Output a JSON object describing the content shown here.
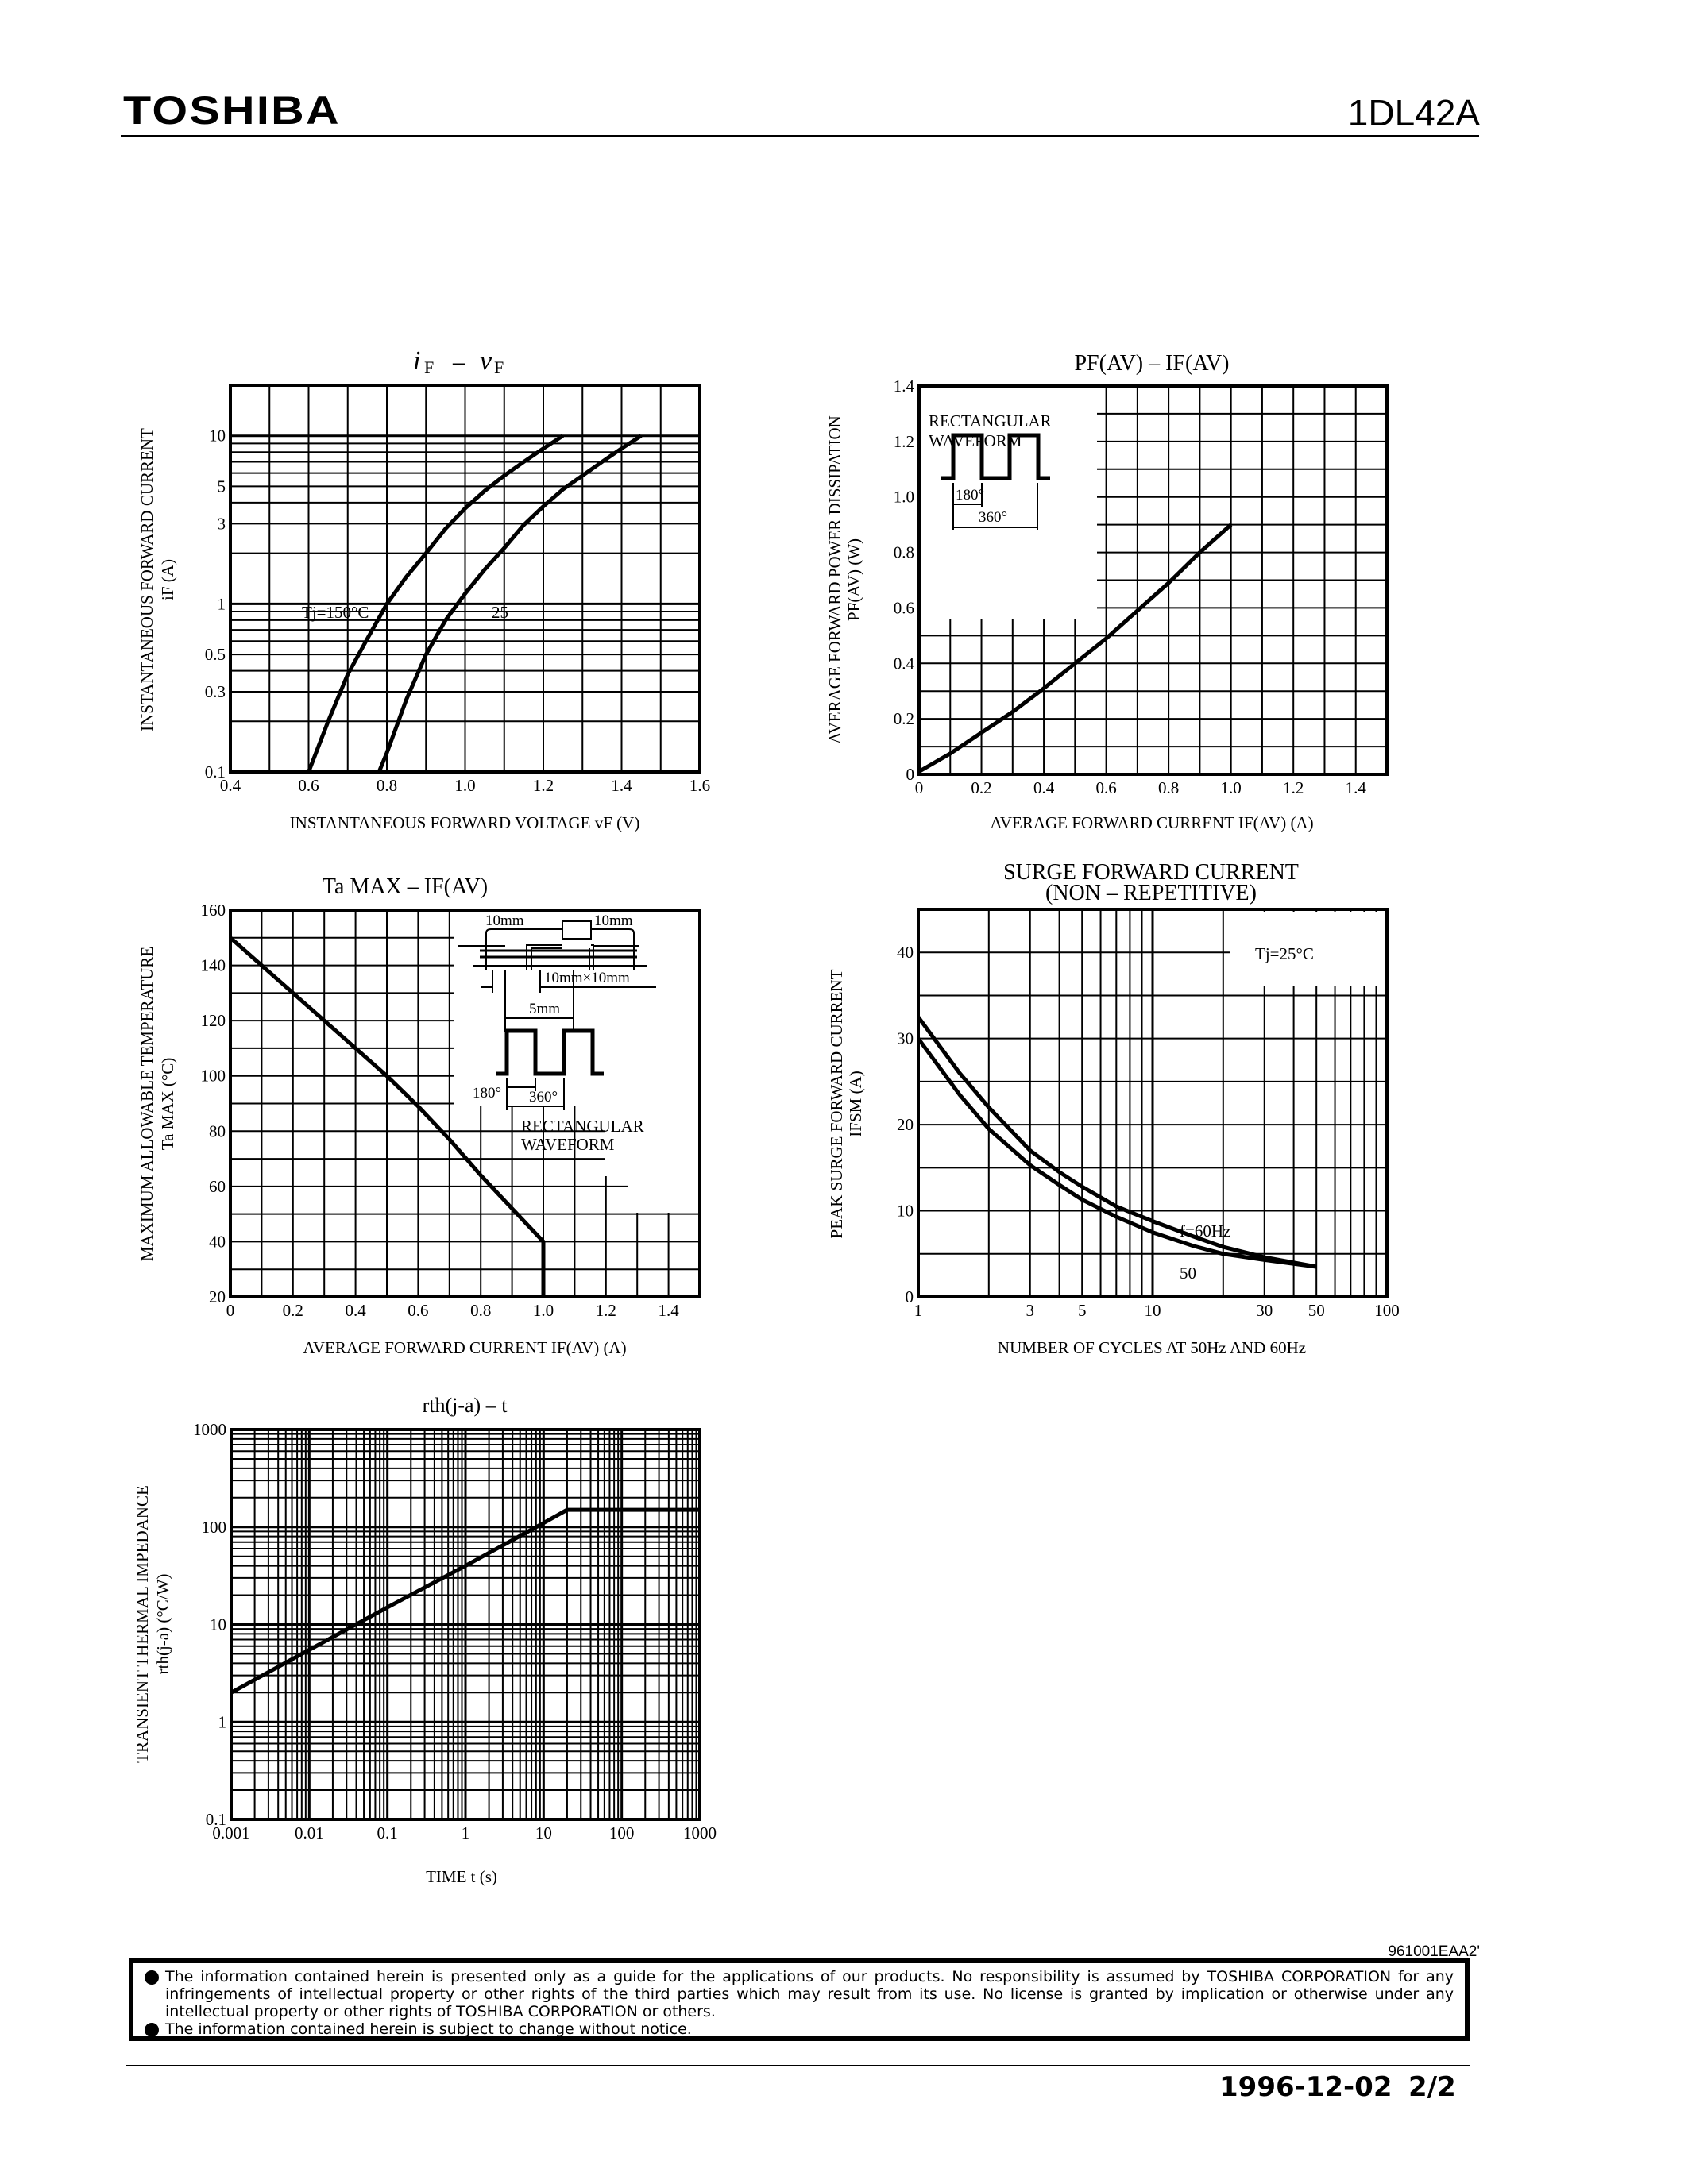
{
  "header": {
    "brand": "TOSHIBA",
    "part_number": "1DL42A"
  },
  "footer": {
    "doc_code": "961001EAA2'",
    "disclaimer": [
      "The information contained herein is presented only as a guide for the applications of our products. No responsibility is assumed by TOSHIBA CORPORATION for any infringements of intellectual property or other rights of the third parties which may result from its use. No license is granted by implication or otherwise under any intellectual property or other rights of TOSHIBA CORPORATION or others.",
      "The information contained herein is subject to change without notice."
    ],
    "date": "1996-12-02",
    "page": "2/2"
  },
  "chart_data": [
    {
      "id": "if-vf",
      "type": "line",
      "title": "iF – vF",
      "xlabel": "INSTANTANEOUS FORWARD VOLTAGE vF (V)",
      "ylabel": "INSTANTANEOUS FORWARD CURRENT iF (A)",
      "xscale": "linear",
      "yscale": "log",
      "xlim": [
        0.4,
        1.6
      ],
      "ylim": [
        0.1,
        20
      ],
      "xticks": [
        "0.4",
        "0.6",
        "0.8",
        "1.0",
        "1.2",
        "1.4",
        "1.6"
      ],
      "yticks": [
        "0.1",
        "0.3",
        "0.5",
        "1",
        "3",
        "5",
        "10"
      ],
      "grid": true,
      "series": [
        {
          "name": "Tj=150°C",
          "label": "Tj=150°C",
          "x": [
            0.6,
            0.65,
            0.7,
            0.75,
            0.8,
            0.85,
            0.9,
            0.95,
            1.0,
            1.05,
            1.1,
            1.15,
            1.2,
            1.25
          ],
          "y": [
            0.1,
            0.2,
            0.38,
            0.62,
            1.0,
            1.45,
            2.0,
            2.8,
            3.7,
            4.7,
            5.8,
            7.0,
            8.4,
            10.0
          ]
        },
        {
          "name": "Tj=25°C",
          "label": "25",
          "x": [
            0.78,
            0.8,
            0.85,
            0.9,
            0.95,
            1.0,
            1.05,
            1.1,
            1.15,
            1.2,
            1.25,
            1.3,
            1.35,
            1.4,
            1.45
          ],
          "y": [
            0.1,
            0.13,
            0.27,
            0.5,
            0.8,
            1.15,
            1.6,
            2.15,
            2.95,
            3.8,
            4.8,
            5.8,
            7.0,
            8.4,
            10.0
          ]
        }
      ],
      "annotations": [
        "Tj=150°C",
        "25"
      ]
    },
    {
      "id": "pf-if",
      "type": "line",
      "title": "PF(AV) – IF(AV)",
      "xlabel": "AVERAGE FORWARD CURRENT IF(AV) (A)",
      "ylabel": "AVERAGE FORWARD POWER DISSIPATION PF(AV) (W)",
      "xscale": "linear",
      "yscale": "linear",
      "xlim": [
        0,
        1.5
      ],
      "ylim": [
        0,
        1.4
      ],
      "xticks": [
        "0",
        "0.2",
        "0.4",
        "0.6",
        "0.8",
        "1.0",
        "1.2",
        "1.4"
      ],
      "yticks": [
        "0",
        "0.2",
        "0.4",
        "0.6",
        "0.8",
        "1.0",
        "1.2",
        "1.4"
      ],
      "grid": true,
      "series": [
        {
          "name": "Rectangular 180°",
          "x": [
            0,
            0.1,
            0.2,
            0.3,
            0.4,
            0.5,
            0.6,
            0.7,
            0.8,
            0.9,
            1.0
          ],
          "y": [
            0.01,
            0.075,
            0.15,
            0.225,
            0.31,
            0.4,
            0.49,
            0.59,
            0.69,
            0.8,
            0.9
          ]
        }
      ],
      "annotations": [
        "RECTANGULAR",
        "WAVEFORM",
        "180°",
        "360°"
      ]
    },
    {
      "id": "ta-if",
      "type": "line",
      "title": "Ta MAX – IF(AV)",
      "xlabel": "AVERAGE FORWARD CURRENT IF(AV) (A)",
      "ylabel": "MAXIMUM ALLOWABLE TEMPERATURE Ta MAX (°C)",
      "xscale": "linear",
      "yscale": "linear",
      "xlim": [
        0,
        1.5
      ],
      "ylim": [
        20,
        160
      ],
      "xticks": [
        "0",
        "0.2",
        "0.4",
        "0.6",
        "0.8",
        "1.0",
        "1.2",
        "1.4"
      ],
      "yticks": [
        "20",
        "40",
        "60",
        "80",
        "100",
        "120",
        "140",
        "160"
      ],
      "grid": true,
      "series": [
        {
          "name": "Ta MAX",
          "x": [
            0,
            0.1,
            0.2,
            0.3,
            0.4,
            0.5,
            0.6,
            0.7,
            0.8,
            0.9,
            1.0,
            1.0
          ],
          "y": [
            150,
            140,
            130,
            120,
            110,
            100,
            89,
            77,
            64,
            52,
            40,
            20
          ]
        }
      ],
      "annotations": [
        "10mm",
        "10mm",
        "10mm×10mm",
        "5mm",
        "180°",
        "360°",
        "RECTANGULAR",
        "WAVEFORM"
      ]
    },
    {
      "id": "ifsm-cycles",
      "type": "line",
      "title": "SURGE FORWARD CURRENT (NON – REPETITIVE)",
      "xlabel": "NUMBER OF CYCLES AT 50Hz AND 60Hz",
      "ylabel": "PEAK SURGE FORWARD CURRENT IFSM (A)",
      "xscale": "log",
      "yscale": "linear",
      "xlim": [
        1,
        100
      ],
      "ylim": [
        0,
        45
      ],
      "xticks": [
        "1",
        "3",
        "5",
        "10",
        "30",
        "50",
        "100"
      ],
      "yticks": [
        "0",
        "10",
        "20",
        "30",
        "40"
      ],
      "grid": true,
      "series": [
        {
          "name": "f=60Hz",
          "x": [
            1,
            1.5,
            2,
            3,
            4,
            5,
            7,
            10,
            15,
            20,
            30,
            50
          ],
          "y": [
            32.5,
            26,
            22,
            17,
            14.5,
            12.8,
            10.5,
            8.8,
            7,
            5.8,
            4.6,
            3.5
          ]
        },
        {
          "name": "f=50Hz",
          "x": [
            1,
            1.5,
            2,
            3,
            4,
            5,
            7,
            10,
            15,
            20,
            30,
            50
          ],
          "y": [
            30,
            23.5,
            19.5,
            15.3,
            13,
            11.3,
            9.3,
            7.5,
            5.9,
            5.0,
            4.3,
            3.5
          ]
        }
      ],
      "annotations": [
        "Tj=25°C",
        "f=60Hz",
        "50"
      ]
    },
    {
      "id": "rth-t",
      "type": "line",
      "title": "rth(j-a) – t",
      "xlabel": "TIME t (s)",
      "ylabel": "TRANSIENT THERMAL IMPEDANCE rth(j-a) (°C/W)",
      "xscale": "log",
      "yscale": "log",
      "xlim": [
        0.001,
        1000
      ],
      "ylim": [
        0.1,
        1000
      ],
      "xticks": [
        "0.001",
        "0.01",
        "0.1",
        "1",
        "10",
        "100",
        "1000"
      ],
      "yticks": [
        "0.1",
        "1",
        "10",
        "100",
        "1000"
      ],
      "grid": true,
      "series": [
        {
          "name": "rth(j-a)",
          "x": [
            0.001,
            0.01,
            0.1,
            1,
            10,
            20,
            1000
          ],
          "y": [
            2.0,
            5.5,
            15,
            40,
            110,
            150,
            150
          ]
        }
      ]
    }
  ],
  "charts": {
    "c1": {
      "title_main": "i",
      "title_sub": "F",
      "title_dash": "–",
      "title_main2": "v",
      "title_sub2": "F",
      "ylabel1": "INSTANTANEOUS FORWARD CURRENT",
      "ylabel2": "iF (A)",
      "xlabel": "INSTANTANEOUS FORWARD VOLTAGE vF (V)",
      "ann1": "Tj=150°C",
      "ann2": "25"
    },
    "c2": {
      "title": "PF(AV) – IF(AV)",
      "ylabel1": "AVERAGE FORWARD POWER DISSIPATION",
      "ylabel2": "PF(AV) (W)",
      "xlabel": "AVERAGE FORWARD CURRENT IF(AV) (A)",
      "inset_l1": "RECTANGULAR",
      "inset_l2": "WAVEFORM",
      "deg180": "180°",
      "deg360": "360°"
    },
    "c3": {
      "title": "Ta MAX – IF(AV)",
      "ylabel1": "MAXIMUM ALLOWABLE TEMPERATURE",
      "ylabel2": "Ta MAX (°C)",
      "xlabel": "AVERAGE FORWARD CURRENT IF(AV) (A)",
      "dim10a": "10mm",
      "dim10b": "10mm",
      "dimpad": "10mm×10mm",
      "dim5": "5mm",
      "deg180": "180°",
      "deg360": "360°",
      "inset_l1": "RECTANGULAR",
      "inset_l2": "WAVEFORM"
    },
    "c4": {
      "title1": "SURGE FORWARD CURRENT",
      "title2": "(NON – REPETITIVE)",
      "ylabel1": "PEAK SURGE FORWARD CURRENT",
      "ylabel2": "IFSM (A)",
      "xlabel": "NUMBER OF CYCLES AT 50Hz AND 60Hz",
      "ann_tj": "Tj=25°C",
      "ann60": "f=60Hz",
      "ann50": "50"
    },
    "c5": {
      "title": "rth(j-a) – t",
      "ylabel1": "TRANSIENT THERMAL IMPEDANCE",
      "ylabel2": "rth(j-a) (°C/W)",
      "xlabel": "TIME t (s)"
    }
  }
}
